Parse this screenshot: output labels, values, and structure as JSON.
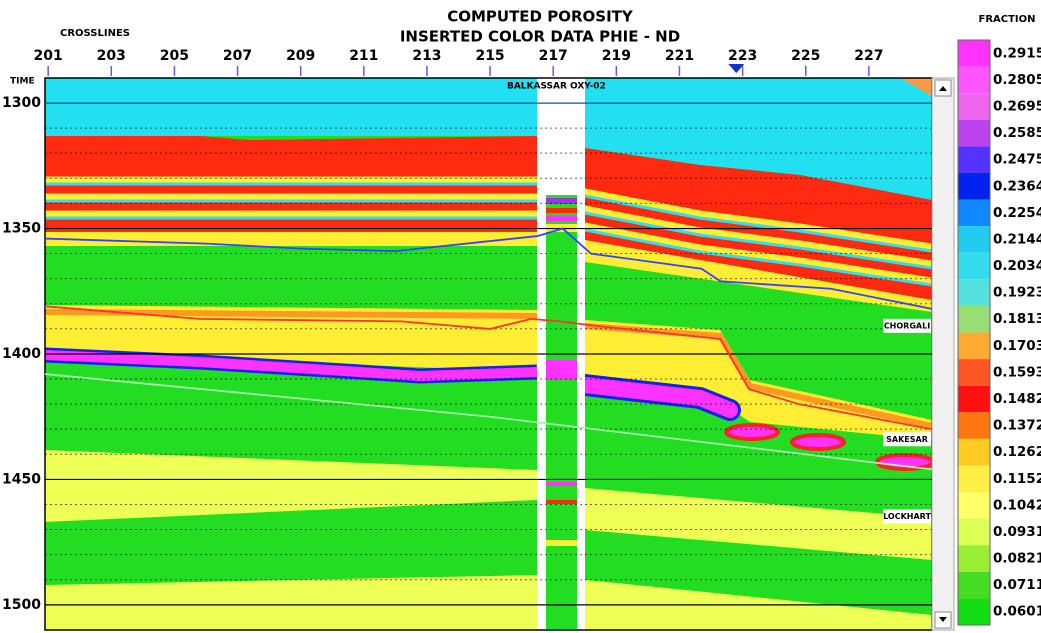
{
  "chart_data": {
    "type": "section",
    "title": "COMPUTED POROSITY",
    "subtitle": "INSERTED COLOR DATA PHIE - ND",
    "xlabel": "CROSSLINES",
    "ylabel": "TIME",
    "xlim": [
      200.9,
      229
    ],
    "xticks": [
      201,
      203,
      205,
      207,
      209,
      211,
      213,
      215,
      217,
      219,
      221,
      223,
      225,
      227
    ],
    "ylim": [
      1290,
      1510
    ],
    "yticks": [
      1300,
      1350,
      1400,
      1450,
      1500
    ],
    "grid": true,
    "well": {
      "name": "BALKASSAR OXY-02",
      "x": 217.1
    },
    "marker_x": 222.8,
    "series": [
      {
        "name": "CHORGALI",
        "color": "#3344ff",
        "x": [
          200.9,
          206,
          209,
          212,
          216.5,
          217.3,
          218.2,
          221.7,
          222.3,
          225.8,
          229
        ],
        "values": [
          1354,
          1356,
          1358,
          1359,
          1353,
          1350,
          1360,
          1366,
          1371,
          1374,
          1382
        ]
      },
      {
        "name": "SAKESAR",
        "color": "#ff3333",
        "x": [
          200.9,
          205.8,
          212.2,
          215,
          216.3,
          217.2,
          218.5,
          222.3,
          223.2,
          224.8,
          229
        ],
        "values": [
          1381,
          1386,
          1387,
          1390,
          1386,
          1387,
          1389,
          1394,
          1414,
          1420,
          1430
        ]
      },
      {
        "name": "LOCKHART",
        "color": "#aaeeaa",
        "x": [
          200.9,
          215,
          229
        ],
        "values": [
          1408,
          1425,
          1446
        ]
      }
    ],
    "colorbar": {
      "title": "FRACTION",
      "ticks": [
        0.2915,
        0.2805,
        0.2695,
        0.2585,
        0.2475,
        0.2364,
        0.2254,
        0.2144,
        0.2034,
        0.1923,
        0.1813,
        0.1703,
        0.1593,
        0.1482,
        0.1372,
        0.1262,
        0.1152,
        0.1042,
        0.0931,
        0.0821,
        0.0711,
        0.0601
      ],
      "colors": [
        "#ff33ff",
        "#ff55ff",
        "#ee66ee",
        "#bb44ee",
        "#5533ff",
        "#0022ee",
        "#1188ff",
        "#22ccee",
        "#33ddee",
        "#55e0e0",
        "#99dd77",
        "#ffaa33",
        "#ff5522",
        "#ff1111",
        "#ff7711",
        "#ffcc22",
        "#ffee44",
        "#ffff66",
        "#ddff55",
        "#99ee33",
        "#44dd22",
        "#11dd11"
      ]
    }
  }
}
